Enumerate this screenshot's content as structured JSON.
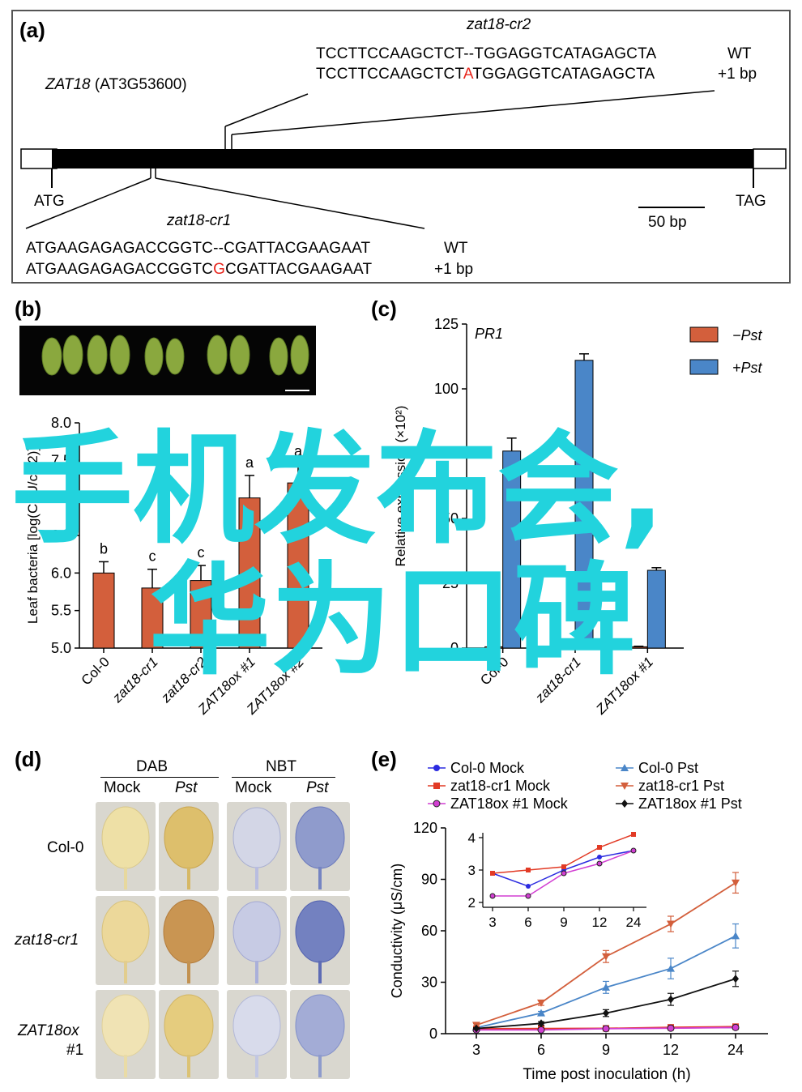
{
  "panel_a": {
    "label": "(a)",
    "gene_name": "ZAT18",
    "gene_locus": "(AT3G53600)",
    "start_codon": "ATG",
    "stop_codon": "TAG",
    "scale_bar": "50 bp",
    "cr2": {
      "title": "zat18-cr2",
      "wt_seq": "TCCTTCCAAGCTCT--TGGAGGTCATAGAGCTA",
      "mut_seq_pre": "TCCTTCCAAGCTCT",
      "mut_insert": "A",
      "mut_seq_post": "TGGAGGTCATAGAGCTA",
      "wt_label": "WT",
      "mut_label": "+1 bp"
    },
    "cr1": {
      "title": "zat18-cr1",
      "wt_seq": "ATGAAGAGAGACCGGTC--CGATTACGAAGAAT",
      "mut_seq_pre": "ATGAAGAGAGACCGGTC",
      "mut_insert": "G",
      "mut_seq_post": "CGATTACGAAGAAT",
      "wt_label": "WT",
      "mut_label": "+1 bp"
    }
  },
  "panel_b": {
    "label": "(b)"
  },
  "panel_c": {
    "label": "(c)",
    "legend": [
      {
        "text": "−Pst",
        "color": "#d35f3c"
      },
      {
        "text": "+Pst",
        "color": "#4a86c8"
      }
    ]
  },
  "panel_d": {
    "label": "(d)",
    "groups": [
      "DAB",
      "NBT"
    ],
    "conditions": [
      "Mock",
      "Pst",
      "Mock",
      "Pst"
    ],
    "rows": [
      "Col-0",
      "zat18-cr1",
      "ZAT18ox",
      "#1"
    ]
  },
  "panel_e": {
    "label": "(e)",
    "legend": [
      {
        "name": "Col-0 Mock",
        "color": "#2b2be0",
        "marker": "circle"
      },
      {
        "name": "Col-0 Pst",
        "color": "#4a86c8",
        "marker": "triangle-up"
      },
      {
        "name": "zat18-cr1 Mock",
        "color": "#e23a25",
        "marker": "square"
      },
      {
        "name": "zat18-cr1 Pst",
        "color": "#d35f3c",
        "marker": "triangle-down"
      },
      {
        "name": "ZAT18ox #1 Mock",
        "color": "#d23fd2",
        "marker": "circle-open"
      },
      {
        "name": "ZAT18ox #1 Pst",
        "color": "#111111",
        "marker": "diamond"
      }
    ]
  },
  "watermark": {
    "line1": "手机发布会,",
    "line2": "华为口碑"
  },
  "chart_data": [
    {
      "type": "bar",
      "panel": "b",
      "categories": [
        "Col-0",
        "zat18-cr1",
        "zat18-cr2",
        "ZAT18ox #1",
        "ZAT18ox #2"
      ],
      "values": [
        6.0,
        5.8,
        5.9,
        7.0,
        7.2
      ],
      "errors": [
        0.15,
        0.25,
        0.2,
        0.3,
        0.25
      ],
      "letters": [
        "b",
        "c",
        "c",
        "a",
        "a"
      ],
      "ylabel": "Leaf bacteria [log(CFU/cm2)]",
      "ylim": [
        5.0,
        8.0
      ],
      "yticks": [
        "5.0",
        "5.5",
        "6.0",
        "6.5",
        "7.0",
        "7.5",
        "8.0"
      ],
      "color": "#d35f3c"
    },
    {
      "type": "bar",
      "panel": "c",
      "title": "PR1",
      "categories": [
        "Col-0",
        "zat18-cr1",
        "ZAT18ox #1"
      ],
      "series": [
        {
          "name": "−Pst",
          "values": [
            0.5,
            0.8,
            0.5
          ],
          "errors": [
            0.2,
            0.2,
            0.2
          ],
          "color": "#d35f3c"
        },
        {
          "name": "+Pst",
          "values": [
            76,
            111,
            30
          ],
          "errors": [
            5,
            2.5,
            1
          ],
          "color": "#4a86c8"
        }
      ],
      "ylabel": "Relative expression (×10²)",
      "ylim": [
        0,
        125
      ],
      "yticks": [
        "0",
        "25",
        "50",
        "75",
        "100",
        "125"
      ]
    },
    {
      "type": "line",
      "panel": "e",
      "x": [
        3,
        6,
        9,
        12,
        24
      ],
      "xticks": [
        "3",
        "6",
        "9",
        "12",
        "24"
      ],
      "xlabel": "Time post inoculation (h)",
      "ylabel": "Conductivity (μS/cm)",
      "ylim": [
        0,
        120
      ],
      "yticks": [
        "0",
        "30",
        "60",
        "90",
        "120"
      ],
      "series": [
        {
          "name": "Col-0 Mock",
          "values": [
            2.9,
            2.5,
            3.0,
            3.4,
            3.6
          ]
        },
        {
          "name": "Col-0 Pst",
          "values": [
            3.5,
            12,
            27,
            38,
            57
          ],
          "errors": [
            0.5,
            1,
            3.5,
            6,
            7
          ]
        },
        {
          "name": "zat18-cr1 Mock",
          "values": [
            2.9,
            3.0,
            3.1,
            3.7,
            4.1
          ]
        },
        {
          "name": "zat18-cr1 Pst",
          "values": [
            5,
            18,
            45,
            64,
            88
          ],
          "errors": [
            0.8,
            1.5,
            3.5,
            4.5,
            6
          ]
        },
        {
          "name": "ZAT18ox #1 Mock",
          "values": [
            2.2,
            2.2,
            2.9,
            3.2,
            3.6
          ]
        },
        {
          "name": "ZAT18ox #1 Pst",
          "values": [
            3,
            6,
            12,
            20,
            32
          ],
          "errors": [
            0.5,
            1,
            2,
            3.5,
            4.5
          ]
        }
      ],
      "inset": {
        "xticks": [
          "3",
          "6",
          "9",
          "12",
          "24"
        ],
        "ylim": [
          2,
          4
        ],
        "yticks": [
          "2",
          "3",
          "4"
        ]
      }
    }
  ]
}
